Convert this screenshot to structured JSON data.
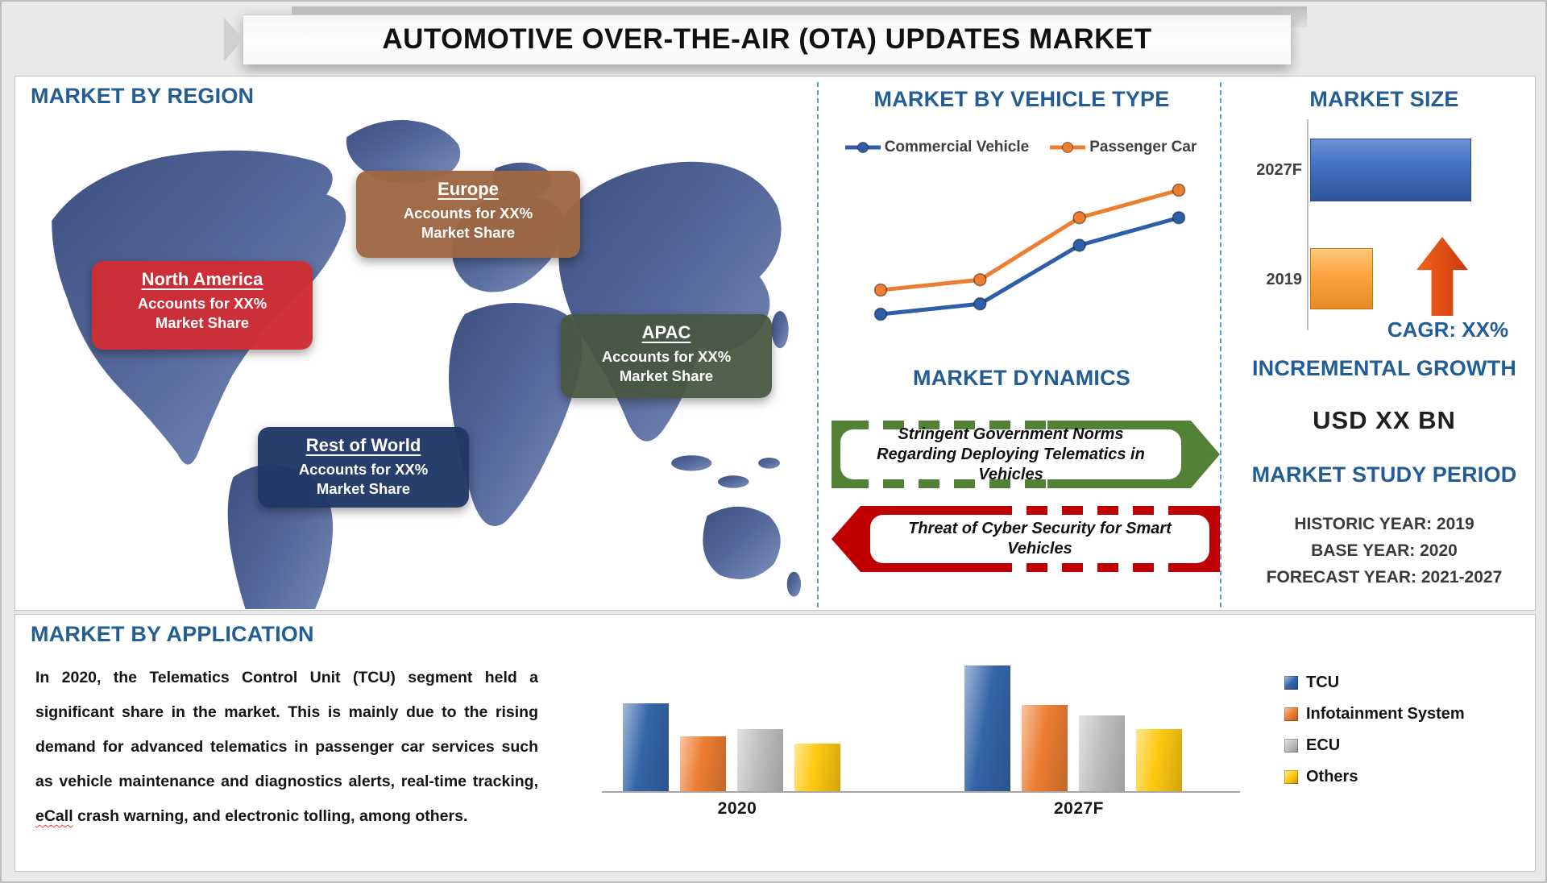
{
  "title": "AUTOMOTIVE OVER-THE-AIR (OTA) UPDATES MARKET",
  "colors": {
    "heading_blue": "#235D96",
    "map_blue": "#56699C",
    "separator_blue": "#5B9BD5",
    "north_america_red": "#CE2D34",
    "europe_brown": "#9D6743",
    "apac_green": "#465740",
    "rest_of_world_navy": "#213866",
    "driver_banner_green": "#538135",
    "restraint_banner_red": "#C00000",
    "cagr_arrow_orange": "#D9480F"
  },
  "region_section": {
    "heading": "MARKET BY REGION",
    "regions": [
      {
        "name": "Europe",
        "line1": "Accounts for XX%",
        "line2": "Market Share"
      },
      {
        "name": "North America",
        "line1": "Accounts for XX%",
        "line2": "Market Share"
      },
      {
        "name": "APAC",
        "line1": "Accounts for XX%",
        "line2": "Market Share"
      },
      {
        "name": "Rest of World",
        "line1": "Accounts for XX%",
        "line2": "Market Share"
      }
    ]
  },
  "dynamics": {
    "heading": "MARKET DYNAMICS",
    "driver": "Stringent Government Norms Regarding Deploying Telematics in Vehicles",
    "restraint": "Threat of Cyber Security for Smart Vehicles"
  },
  "incremental_growth": {
    "heading": "INCREMENTAL GROWTH",
    "value": "USD XX BN"
  },
  "study_period": {
    "heading": "MARKET STUDY PERIOD",
    "lines": [
      "HISTORIC YEAR: 2019",
      "BASE YEAR: 2020",
      "FORECAST YEAR: 2021-2027"
    ]
  },
  "application_section": {
    "paragraph_before": "In 2020, the Telematics Control Unit (TCU) segment held a significant share in the market. This is mainly due to the rising demand for advanced telematics in passenger car services such as vehicle maintenance and diagnostics alerts, real-time tracking, ",
    "spellcheck_word": "eCall",
    "paragraph_after": " crash warning, and electronic tolling, among others."
  },
  "chart_data": [
    {
      "id": "vehicle-type-line-chart",
      "type": "line",
      "title": "MARKET BY VEHICLE TYPE",
      "x": [
        1,
        2,
        3,
        4
      ],
      "series": [
        {
          "name": "Commercial Vehicle",
          "color": "#2F5EA8",
          "values": [
            2.0,
            2.3,
            4.0,
            4.8
          ]
        },
        {
          "name": "Passenger Car",
          "color": "#ED7D31",
          "values": [
            2.7,
            3.0,
            4.8,
            5.6
          ]
        }
      ],
      "axes_hidden": true,
      "legend_position": "top"
    },
    {
      "id": "market-size-bar-chart",
      "type": "bar",
      "orientation": "horizontal",
      "title": "MARKET SIZE",
      "categories": [
        "2027F",
        "2019"
      ],
      "values": [
        100,
        39
      ],
      "colors": [
        "#4472C4",
        "#FCA33F"
      ],
      "annotation": "CAGR: XX%",
      "axes_hidden": true
    },
    {
      "id": "application-grouped-bar-chart",
      "type": "bar",
      "title": "MARKET BY APPLICATION",
      "categories": [
        "2020",
        "2027F"
      ],
      "series": [
        {
          "name": "TCU",
          "color": "#3465A8",
          "values": [
            109,
            156
          ]
        },
        {
          "name": "Infotainment System",
          "color": "#ED7D31",
          "values": [
            68,
            107
          ]
        },
        {
          "name": "ECU",
          "color": "#BFBFBF",
          "values": [
            77,
            94
          ]
        },
        {
          "name": "Others",
          "color": "#FFC810",
          "values": [
            59,
            77
          ]
        }
      ],
      "value_unit": "relative-height",
      "legend_position": "right",
      "axes_hidden": true
    }
  ]
}
